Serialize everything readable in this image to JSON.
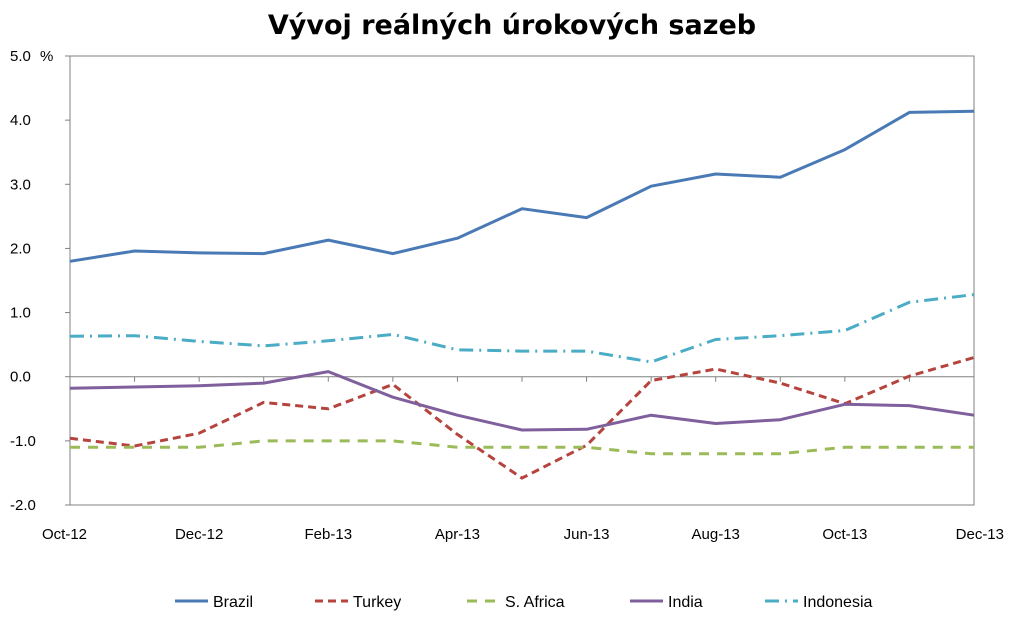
{
  "chart_data": {
    "type": "line",
    "title": "Vývoj reálných úrokových sazeb",
    "y_unit": "%",
    "ylim": [
      -2.0,
      5.0
    ],
    "y_ticks": [
      "5.0",
      "4.0",
      "3.0",
      "2.0",
      "1.0",
      "0.0",
      "-1.0",
      "-2.0"
    ],
    "categories": [
      "Oct-12",
      "Nov-12",
      "Dec-12",
      "Jan-13",
      "Feb-13",
      "Mar-13",
      "Apr-13",
      "May-13",
      "Jun-13",
      "Jul-13",
      "Aug-13",
      "Sep-13",
      "Oct-13",
      "Nov-13",
      "Dec-13"
    ],
    "x_tick_labels": [
      "Oct-12",
      "Dec-12",
      "Feb-13",
      "Apr-13",
      "Jun-13",
      "Aug-13",
      "Oct-13",
      "Dec-13"
    ],
    "legend_position": "bottom",
    "grid": false,
    "series": [
      {
        "name": "Brazil",
        "color": "#4a7ab5",
        "dash": "solid",
        "values": [
          1.8,
          1.96,
          1.93,
          1.92,
          2.13,
          1.92,
          2.16,
          2.62,
          2.48,
          2.97,
          3.16,
          3.11,
          3.54,
          4.12,
          4.14
        ]
      },
      {
        "name": "Turkey",
        "color": "#b5443f",
        "dash": "dash",
        "values": [
          -0.96,
          -1.08,
          -0.88,
          -0.4,
          -0.5,
          -0.12,
          -0.9,
          -1.58,
          -1.07,
          -0.06,
          0.12,
          -0.1,
          -0.42,
          0.01,
          0.3
        ]
      },
      {
        "name": "S. Africa",
        "color": "#9bbb59",
        "dash": "longdash",
        "values": [
          -1.1,
          -1.1,
          -1.1,
          -1.0,
          -1.0,
          -1.0,
          -1.1,
          -1.1,
          -1.1,
          -1.2,
          -1.2,
          -1.2,
          -1.1,
          -1.1,
          -1.1
        ]
      },
      {
        "name": "India",
        "color": "#7f5f9c",
        "dash": "solid",
        "values": [
          -0.18,
          -0.16,
          -0.14,
          -0.1,
          0.08,
          -0.32,
          -0.6,
          -0.83,
          -0.82,
          -0.6,
          -0.73,
          -0.67,
          -0.43,
          -0.45,
          -0.6
        ]
      },
      {
        "name": "Indonesia",
        "color": "#4bacc6",
        "dash": "dashdot",
        "values": [
          0.63,
          0.64,
          0.55,
          0.48,
          0.56,
          0.66,
          0.42,
          0.4,
          0.4,
          0.23,
          0.58,
          0.64,
          0.72,
          1.16,
          1.28
        ]
      }
    ]
  }
}
